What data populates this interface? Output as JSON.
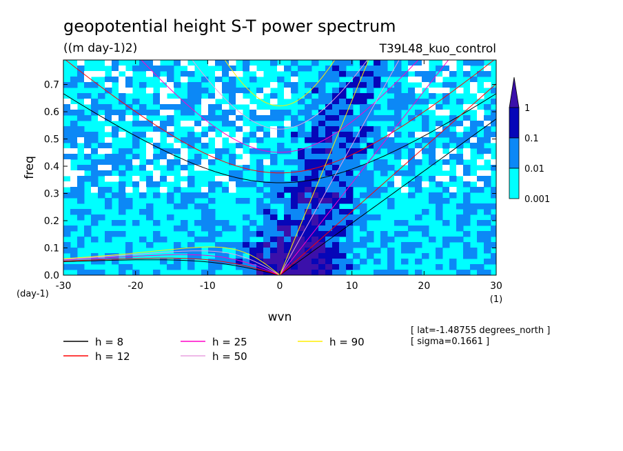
{
  "chart_data": {
    "type": "heatmap",
    "title": "geopotential height S-T power spectrum",
    "subtitle": "((m day-1)2)",
    "experiment": "T39L48_kuo_control",
    "xlabel": "wvn",
    "ylabel": "freq",
    "x_unit": "(1)",
    "y_unit": "(day-1)",
    "xlim": [
      -30,
      30
    ],
    "ylim": [
      0,
      0.79
    ],
    "x_ticks": [
      "-30",
      "-20",
      "-10",
      "0",
      "10",
      "20",
      "30"
    ],
    "x_tick_values": [
      -30,
      -20,
      -10,
      0,
      10,
      20,
      30
    ],
    "y_ticks": [
      "0.0",
      "0.1",
      "0.2",
      "0.3",
      "0.4",
      "0.5",
      "0.6",
      "0.7"
    ],
    "y_tick_values": [
      0,
      0.1,
      0.2,
      0.3,
      0.4,
      0.5,
      0.6,
      0.7
    ],
    "colorbar": {
      "labels": [
        "1",
        "0.1",
        "0.01",
        "0.001"
      ],
      "levels": [
        1,
        0.1,
        0.01,
        0.001
      ],
      "colors": [
        "#ffffff",
        "#00ffff",
        "#0c88f6",
        "#0606b8",
        "#3b10aa"
      ]
    },
    "curves": [
      {
        "name": "h =  8",
        "h": 8,
        "color": "#000000"
      },
      {
        "name": "h = 12",
        "h": 12,
        "color": "#ff0000"
      },
      {
        "name": "h = 25",
        "h": 25,
        "color": "#ff00c8"
      },
      {
        "name": "h = 50",
        "h": 50,
        "color": "#e8a0e0"
      },
      {
        "name": "h = 90",
        "h": 90,
        "color": "#ffee00"
      }
    ],
    "annotations": [
      "[ lat=-1.48755 degrees_north ]",
      "[ sigma=0.1661 ]"
    ],
    "grid": false,
    "legend_placement": "bottom-left"
  }
}
